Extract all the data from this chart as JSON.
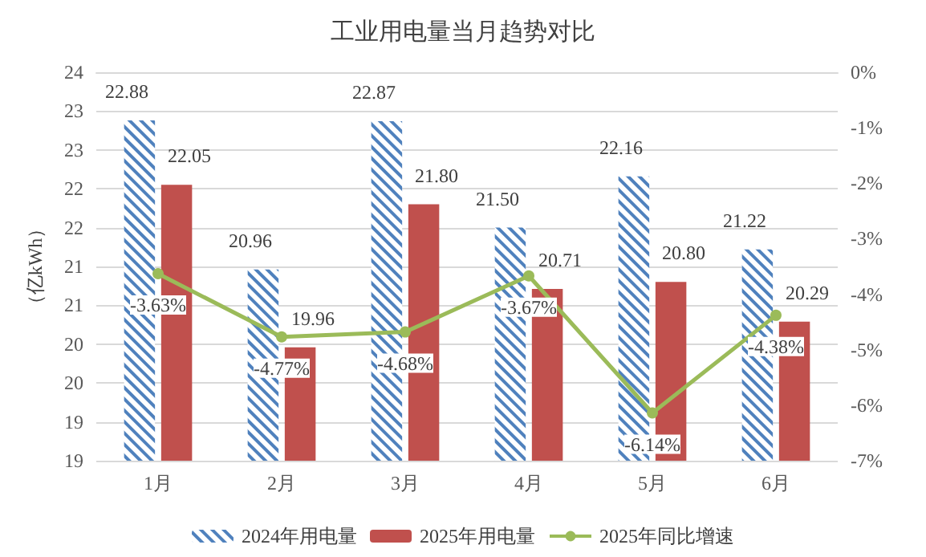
{
  "chart_data": {
    "type": "bar",
    "title": "工业用电量当月趋势对比",
    "ylabel": "（亿kWh）",
    "categories": [
      "1月",
      "2月",
      "3月",
      "4月",
      "5月",
      "6月"
    ],
    "series": [
      {
        "name": "2024年用电量",
        "color": "#4f81bd",
        "values": [
          22.88,
          20.96,
          22.87,
          21.5,
          22.16,
          21.22
        ],
        "value_labels": [
          "22.88",
          "20.96",
          "22.87",
          "21.50",
          "22.16",
          "21.22"
        ]
      },
      {
        "name": "2025年用电量",
        "color": "#c0504d",
        "values": [
          22.05,
          19.96,
          21.8,
          20.71,
          20.8,
          20.29
        ],
        "value_labels": [
          "22.05",
          "19.96",
          "21.80",
          "20.71",
          "20.80",
          "20.29"
        ]
      },
      {
        "name": "2025年同比增速",
        "type": "line",
        "axis": "y2",
        "color": "#9bbb59",
        "values": [
          -3.63,
          -4.77,
          -4.68,
          -3.67,
          -6.14,
          -4.38
        ],
        "value_labels": [
          "-3.63%",
          "-4.77%",
          "-4.68%",
          "-3.67%",
          "-6.14%",
          "-4.38%"
        ]
      }
    ],
    "ylim": [
      18.5,
      23.5
    ],
    "yticks": [
      {
        "value": 18.5,
        "label": "19"
      },
      {
        "value": 19,
        "label": "19"
      },
      {
        "value": 19.5,
        "label": "20"
      },
      {
        "value": 20,
        "label": "20"
      },
      {
        "value": 20.5,
        "label": "21"
      },
      {
        "value": 21,
        "label": "21"
      },
      {
        "value": 21.5,
        "label": "22"
      },
      {
        "value": 22,
        "label": "22"
      },
      {
        "value": 22.5,
        "label": "23"
      },
      {
        "value": 23,
        "label": "23"
      },
      {
        "value": 23.5,
        "label": "24"
      }
    ],
    "y2lim": [
      -7,
      0
    ],
    "y2ticks": [
      {
        "value": -7,
        "label": "-7%"
      },
      {
        "value": -6,
        "label": "-6%"
      },
      {
        "value": -5,
        "label": "-5%"
      },
      {
        "value": -4,
        "label": "-4%"
      },
      {
        "value": -3,
        "label": "-3%"
      },
      {
        "value": -2,
        "label": "-2%"
      },
      {
        "value": -1,
        "label": "-1%"
      },
      {
        "value": 0,
        "label": "0%"
      }
    ],
    "grid": "y",
    "legend": "bottom",
    "marker": "circle"
  }
}
